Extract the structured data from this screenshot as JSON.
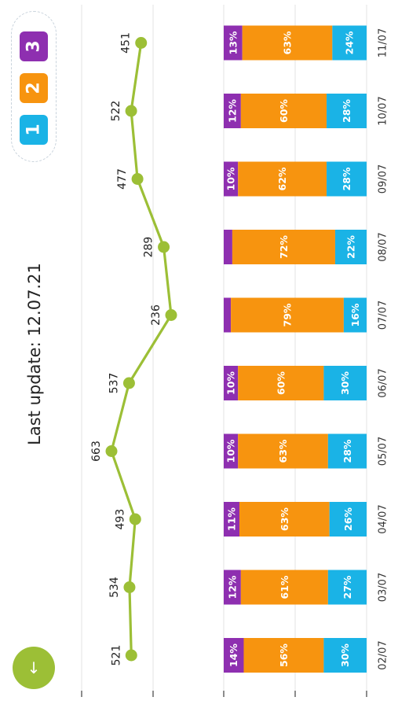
{
  "header": {
    "last_update": "Last update: 12.07.21"
  },
  "fab": {
    "icon": "arrow-down-icon"
  },
  "legend_badge": {
    "items": [
      "1",
      "2",
      "3"
    ],
    "colors": [
      "#1ab3e6",
      "#f7940f",
      "#8e2fb0"
    ]
  },
  "colors": {
    "line": "#9cbf36",
    "purple": "#8e2fb0",
    "orange": "#f7940f",
    "blue": "#1ab3e6",
    "fab": "#9cbf36"
  },
  "chart_data": {
    "type": "bar",
    "orientation": "rotated",
    "categories": [
      "02/07",
      "03/07",
      "04/07",
      "05/07",
      "06/07",
      "07/07",
      "08/07",
      "09/07",
      "10/07",
      "11/07"
    ],
    "line_series": {
      "values": [
        521,
        534,
        493,
        663,
        537,
        236,
        289,
        477,
        522,
        451
      ]
    },
    "stacked_series": [
      {
        "color": "#8e2fb0",
        "values": [
          14,
          12,
          11,
          10,
          10,
          5,
          6,
          10,
          12,
          13
        ],
        "labels": [
          "14%",
          "12%",
          "11%",
          "10%",
          "10%",
          "",
          "",
          "10%",
          "12%",
          "13%"
        ]
      },
      {
        "color": "#f7940f",
        "values": [
          56,
          61,
          63,
          63,
          60,
          79,
          72,
          62,
          60,
          63
        ],
        "labels": [
          "56%",
          "61%",
          "63%",
          "63%",
          "60%",
          "79%",
          "72%",
          "62%",
          "60%",
          "63%"
        ]
      },
      {
        "color": "#1ab3e6",
        "values": [
          30,
          27,
          26,
          28,
          30,
          16,
          22,
          28,
          28,
          24
        ],
        "labels": [
          "30%",
          "27%",
          "26%",
          "28%",
          "30%",
          "16%",
          "22%",
          "28%",
          "28%",
          "24%"
        ]
      }
    ],
    "grid": true
  }
}
